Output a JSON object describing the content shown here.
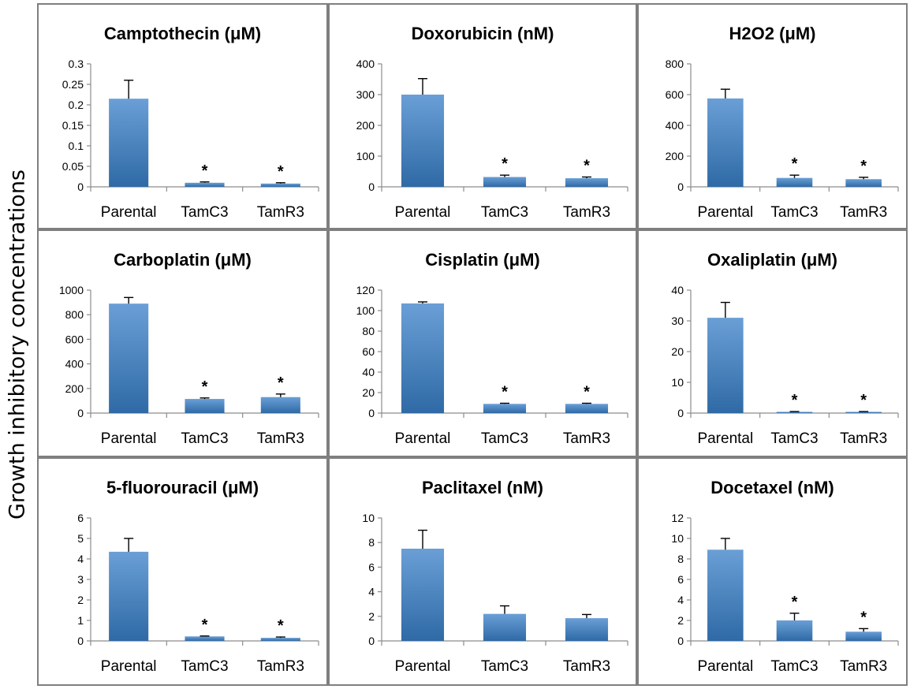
{
  "ylabel": "Growth inhibitory concentrations",
  "colors": {
    "bar_top": "#6a9fd6",
    "bar_bottom": "#2f6aa6",
    "frame": "#7f7f7f"
  },
  "chart_data": [
    {
      "type": "bar",
      "title": "Camptothecin (μM)",
      "categories": [
        "Parental",
        "TamC3",
        "TamR3"
      ],
      "values": [
        0.215,
        0.01,
        0.008
      ],
      "errors": [
        0.045,
        0.002,
        0.002
      ],
      "significant": [
        false,
        true,
        true
      ],
      "yticks": [
        "0",
        "0.05",
        "0.1",
        "0.15",
        "0.2",
        "0.25",
        "0.3"
      ],
      "ylim": [
        0,
        0.3
      ]
    },
    {
      "type": "bar",
      "title": "Doxorubicin (nM)",
      "categories": [
        "Parental",
        "TamC3",
        "TamR3"
      ],
      "values": [
        300,
        32,
        28
      ],
      "errors": [
        52,
        6,
        4
      ],
      "significant": [
        false,
        true,
        true
      ],
      "yticks": [
        "0",
        "100",
        "200",
        "300",
        "400"
      ],
      "ylim": [
        0,
        400
      ]
    },
    {
      "type": "bar",
      "title": "H2O2 (μM)",
      "categories": [
        "Parental",
        "TamC3",
        "TamR3"
      ],
      "values": [
        575,
        58,
        50
      ],
      "errors": [
        60,
        18,
        12
      ],
      "significant": [
        false,
        true,
        true
      ],
      "yticks": [
        "0",
        "200",
        "400",
        "600",
        "800"
      ],
      "ylim": [
        0,
        800
      ]
    },
    {
      "type": "bar",
      "title": "Carboplatin (μM)",
      "categories": [
        "Parental",
        "TamC3",
        "TamR3"
      ],
      "values": [
        890,
        115,
        130
      ],
      "errors": [
        50,
        8,
        25
      ],
      "significant": [
        false,
        true,
        true
      ],
      "yticks": [
        "0",
        "200",
        "400",
        "600",
        "800",
        "1000"
      ],
      "ylim": [
        0,
        1000
      ]
    },
    {
      "type": "bar",
      "title": "Cisplatin (μM)",
      "categories": [
        "Parental",
        "TamC3",
        "TamR3"
      ],
      "values": [
        107,
        9,
        9
      ],
      "errors": [
        1.5,
        0.6,
        0.6
      ],
      "significant": [
        false,
        true,
        true
      ],
      "yticks": [
        "0",
        "20",
        "40",
        "60",
        "80",
        "100",
        "120"
      ],
      "ylim": [
        0,
        120
      ]
    },
    {
      "type": "bar",
      "title": "Oxaliplatin (μM)",
      "categories": [
        "Parental",
        "TamC3",
        "TamR3"
      ],
      "values": [
        31,
        0.4,
        0.4
      ],
      "errors": [
        5,
        0.1,
        0.1
      ],
      "significant": [
        false,
        true,
        true
      ],
      "yticks": [
        "0",
        "10",
        "20",
        "30",
        "40"
      ],
      "ylim": [
        0,
        40
      ]
    },
    {
      "type": "bar",
      "title": "5-fluorouracil (μM)",
      "categories": [
        "Parental",
        "TamC3",
        "TamR3"
      ],
      "values": [
        4.35,
        0.22,
        0.15
      ],
      "errors": [
        0.65,
        0.02,
        0.04
      ],
      "significant": [
        false,
        true,
        true
      ],
      "yticks": [
        "0",
        "1",
        "2",
        "3",
        "4",
        "5",
        "6"
      ],
      "ylim": [
        0,
        6
      ]
    },
    {
      "type": "bar",
      "title": "Paclitaxel (nM)",
      "categories": [
        "Parental",
        "TamC3",
        "TamR3"
      ],
      "values": [
        7.5,
        2.2,
        1.85
      ],
      "errors": [
        1.5,
        0.65,
        0.3
      ],
      "significant": [
        false,
        false,
        false
      ],
      "yticks": [
        "0",
        "2",
        "4",
        "6",
        "8",
        "10"
      ],
      "ylim": [
        0,
        10
      ]
    },
    {
      "type": "bar",
      "title": "Docetaxel (nM)",
      "categories": [
        "Parental",
        "TamC3",
        "TamR3"
      ],
      "values": [
        8.9,
        2.0,
        0.9
      ],
      "errors": [
        1.1,
        0.7,
        0.3
      ],
      "significant": [
        false,
        true,
        true
      ],
      "yticks": [
        "0",
        "2",
        "4",
        "6",
        "8",
        "10",
        "12"
      ],
      "ylim": [
        0,
        12
      ]
    }
  ]
}
